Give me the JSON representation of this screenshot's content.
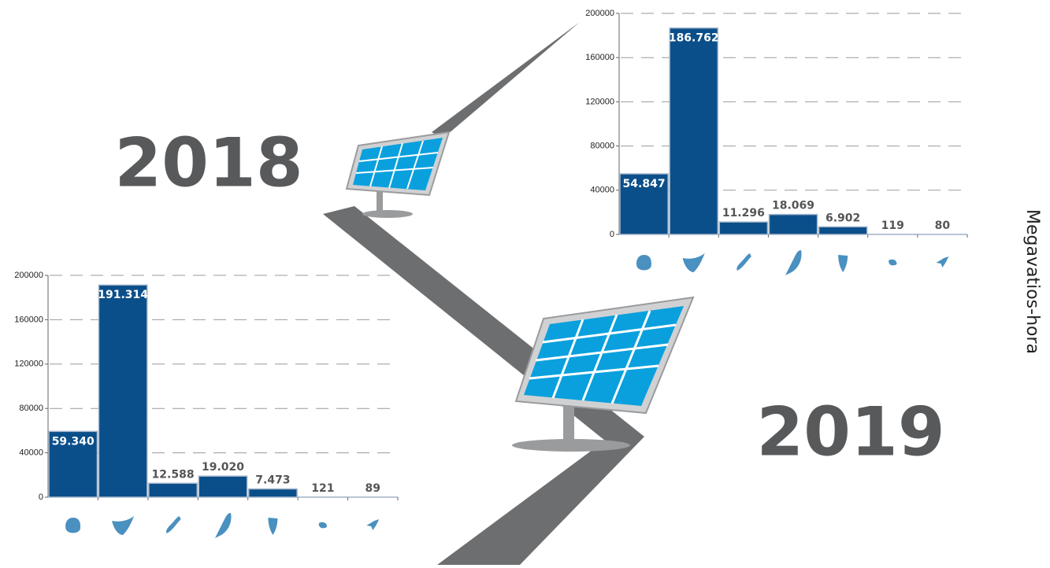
{
  "axis_label": "Megavatios-hora",
  "chart_data": [
    {
      "type": "bar",
      "title": "2018",
      "color": "#0b4f8a",
      "categories": [
        null,
        null,
        null,
        null,
        null,
        null,
        null
      ],
      "values": [
        54847,
        186762,
        11296,
        18069,
        6902,
        119,
        80
      ],
      "value_labels": [
        "54.847",
        "186.762",
        "11.296",
        "18.069",
        "6.902",
        "119",
        "80"
      ],
      "ylim": [
        0,
        200000
      ],
      "yticks": [
        0,
        40000,
        80000,
        120000,
        160000,
        200000
      ],
      "grid": true
    },
    {
      "type": "bar",
      "title": "2019",
      "color": "#0b4f8a",
      "categories": [
        null,
        null,
        null,
        null,
        null,
        null,
        null
      ],
      "values": [
        59340,
        191314,
        12588,
        19020,
        7473,
        121,
        89
      ],
      "value_labels": [
        "59.340",
        "191.314",
        "12.588",
        "19.020",
        "7.473",
        "121",
        "89"
      ],
      "ylim": [
        0,
        200000
      ],
      "yticks": [
        0,
        40000,
        80000,
        120000,
        160000,
        200000
      ],
      "grid": true
    }
  ]
}
